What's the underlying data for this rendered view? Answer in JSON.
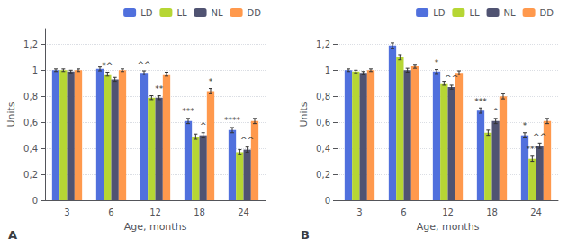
{
  "chart_data": [
    {
      "type": "bar",
      "title": "A",
      "xlabel": "Age, months",
      "ylabel": "Units",
      "categories": [
        "3",
        "6",
        "12",
        "18",
        "24"
      ],
      "series": [
        {
          "name": "LD",
          "values": [
            1.0,
            1.01,
            0.98,
            0.61,
            0.54
          ],
          "errors": [
            0.01,
            0.015,
            0.015,
            0.02,
            0.02
          ]
        },
        {
          "name": "LL",
          "values": [
            1.0,
            0.97,
            0.79,
            0.49,
            0.37
          ],
          "errors": [
            0.01,
            0.015,
            0.015,
            0.02,
            0.02
          ]
        },
        {
          "name": "NL",
          "values": [
            0.99,
            0.93,
            0.79,
            0.5,
            0.39
          ],
          "errors": [
            0.01,
            0.015,
            0.015,
            0.02,
            0.02
          ]
        },
        {
          "name": "DD",
          "values": [
            1.0,
            1.0,
            0.97,
            0.84,
            0.61
          ],
          "errors": [
            0.01,
            0.01,
            0.015,
            0.02,
            0.02
          ]
        }
      ],
      "annotations": [
        {
          "category": "6",
          "series": "LL",
          "text": "*^"
        },
        {
          "category": "12",
          "series": "LD",
          "text": "^^"
        },
        {
          "category": "12",
          "series": "NL",
          "text": "**"
        },
        {
          "category": "18",
          "series": "LD",
          "text": "***"
        },
        {
          "category": "18",
          "series": "NL",
          "text": "^"
        },
        {
          "category": "18",
          "series": "DD",
          "text": "*"
        },
        {
          "category": "24",
          "series": "LD",
          "text": "****"
        },
        {
          "category": "24",
          "series": "NL",
          "text": "^^"
        }
      ],
      "ylim": [
        0,
        1.32
      ],
      "yticks": [
        0,
        {
          "value": 0.2,
          "label": "0,2"
        },
        {
          "value": 0.4,
          "label": "0,4"
        },
        {
          "value": 0.6,
          "label": "0,6"
        },
        {
          "value": 0.8,
          "label": "0,8"
        },
        1,
        {
          "value": 1.2,
          "label": "1,2"
        }
      ],
      "grid": true,
      "legend": "upper right"
    },
    {
      "type": "bar",
      "title": "B",
      "xlabel": "Age, months",
      "ylabel": "Units",
      "categories": [
        "3",
        "6",
        "12",
        "18",
        "24"
      ],
      "series": [
        {
          "name": "LD",
          "values": [
            1.0,
            1.19,
            0.99,
            0.69,
            0.5
          ],
          "errors": [
            0.01,
            0.02,
            0.015,
            0.02,
            0.02
          ]
        },
        {
          "name": "LL",
          "values": [
            0.99,
            1.1,
            0.9,
            0.52,
            0.32
          ],
          "errors": [
            0.01,
            0.02,
            0.015,
            0.02,
            0.02
          ]
        },
        {
          "name": "NL",
          "values": [
            0.98,
            1.0,
            0.87,
            0.61,
            0.42
          ],
          "errors": [
            0.01,
            0.015,
            0.015,
            0.02,
            0.02
          ]
        },
        {
          "name": "DD",
          "values": [
            1.0,
            1.03,
            0.98,
            0.8,
            0.61
          ],
          "errors": [
            0.01,
            0.015,
            0.015,
            0.02,
            0.02
          ]
        }
      ],
      "annotations": [
        {
          "category": "12",
          "series": "LD",
          "text": "*"
        },
        {
          "category": "12",
          "series": "NL",
          "text": "^^"
        },
        {
          "category": "18",
          "series": "LD",
          "text": "***"
        },
        {
          "category": "18",
          "series": "NL",
          "text": "^"
        },
        {
          "category": "24",
          "series": "LD",
          "text": "*"
        },
        {
          "category": "24",
          "series": "LL",
          "text": "***"
        },
        {
          "category": "24",
          "series": "NL",
          "text": "^^"
        }
      ],
      "ylim": [
        0,
        1.32
      ],
      "yticks": [
        0,
        {
          "value": 0.2,
          "label": "0,2"
        },
        {
          "value": 0.4,
          "label": "0,4"
        },
        {
          "value": 0.6,
          "label": "0,6"
        },
        {
          "value": 0.8,
          "label": "0,8"
        },
        1,
        {
          "value": 1.2,
          "label": "1,2"
        }
      ],
      "grid": true,
      "legend": "upper right"
    }
  ]
}
